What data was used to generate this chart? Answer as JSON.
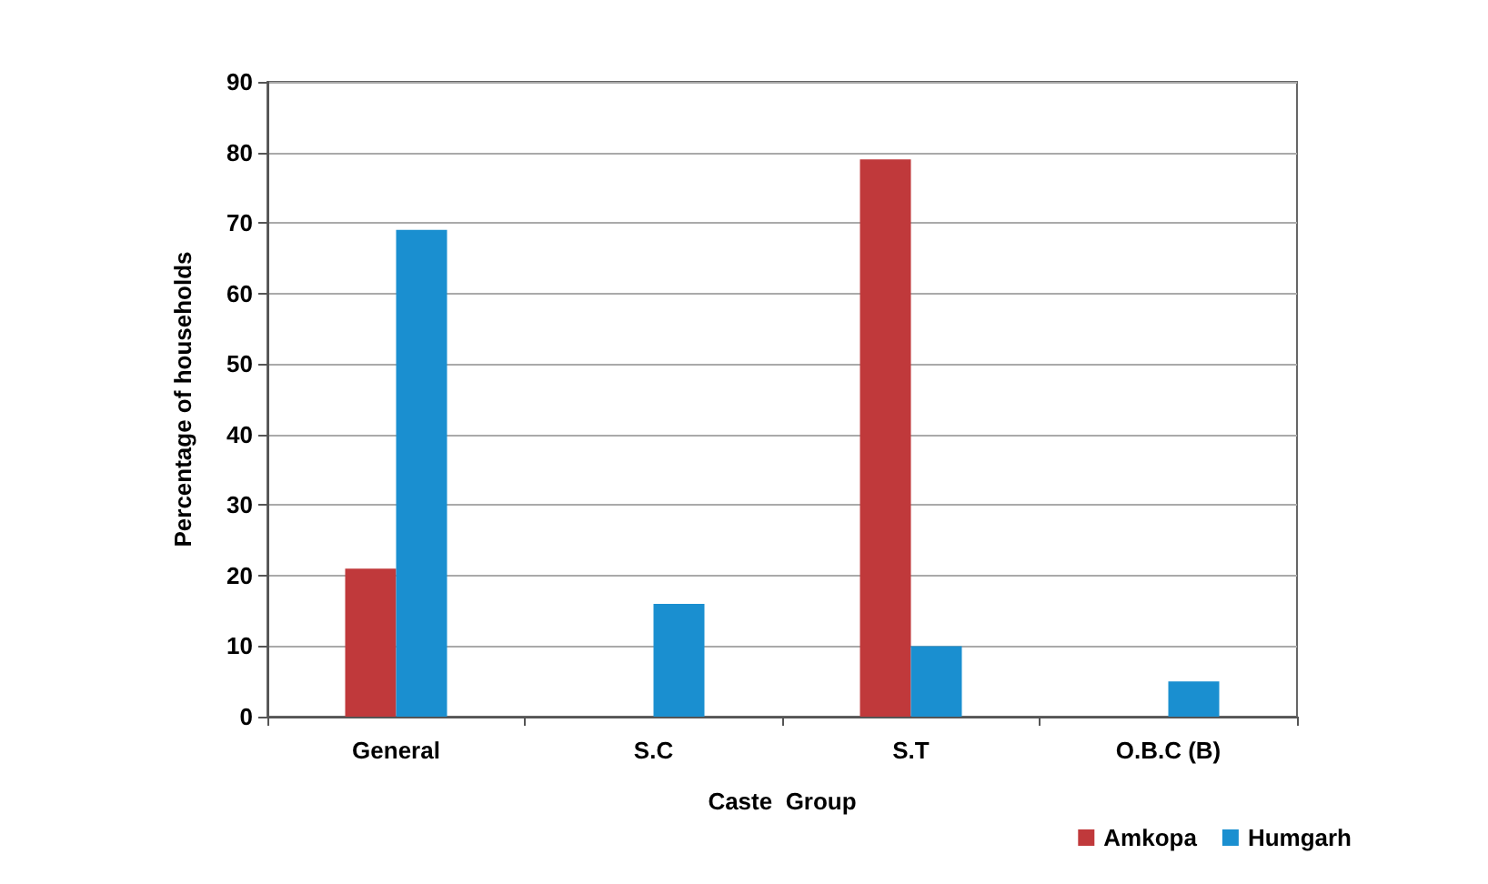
{
  "chart_data": {
    "type": "bar",
    "xlabel": "Caste  Group",
    "ylabel": "Percentage of households",
    "categories": [
      "General",
      "S.C",
      "S.T",
      "O.B.C (B)"
    ],
    "series": [
      {
        "name": "Amkopa",
        "color": "#c0393b",
        "values": [
          21,
          null,
          79,
          null
        ]
      },
      {
        "name": "Humgarh",
        "color": "#1a8fd0",
        "values": [
          69,
          16,
          10,
          5
        ]
      }
    ],
    "ylim": [
      0,
      90
    ],
    "yticks": [
      0,
      10,
      20,
      30,
      40,
      50,
      60,
      70,
      80,
      90
    ],
    "grid": "y",
    "legend": "bottom right"
  }
}
